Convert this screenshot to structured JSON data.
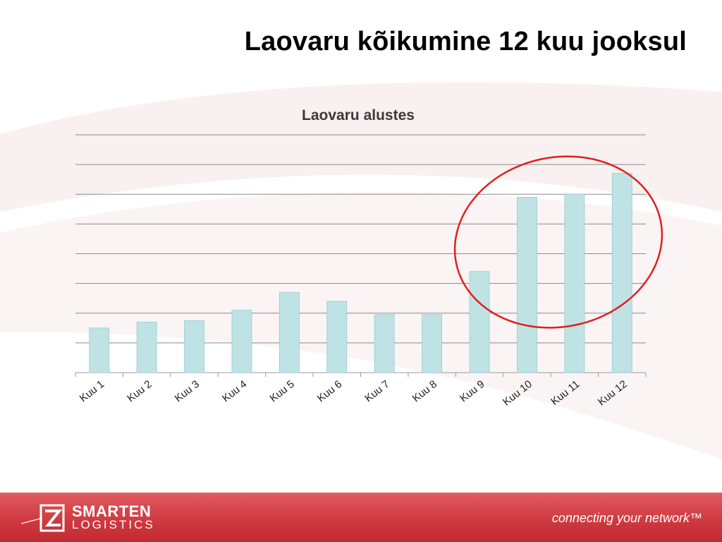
{
  "slide": {
    "title": "Laovaru kõikumine 12 kuu jooksul"
  },
  "chart_data": {
    "type": "bar",
    "title": "Laovaru alustes",
    "categories": [
      "Kuu 1",
      "Kuu 2",
      "Kuu 3",
      "Kuu 4",
      "Kuu 5",
      "Kuu 6",
      "Kuu 7",
      "Kuu 8",
      "Kuu 9",
      "Kuu 10",
      "Kuu 11",
      "Kuu 12"
    ],
    "values": [
      1.5,
      1.7,
      1.75,
      2.1,
      2.7,
      2.4,
      1.95,
      1.95,
      3.4,
      5.9,
      6.0,
      6.7
    ],
    "ylim": [
      0,
      8
    ],
    "grid": true,
    "bar_color": "#bfe3e4",
    "highlight": {
      "categories": [
        "Kuu 9",
        "Kuu 10",
        "Kuu 11",
        "Kuu 12"
      ],
      "shape": "ellipse",
      "color": "#e02020"
    }
  },
  "footer": {
    "logo_main": "SMARTEN",
    "logo_sub": "LOGISTICS",
    "tagline": "connecting your network™",
    "color": "#cf3b41"
  }
}
